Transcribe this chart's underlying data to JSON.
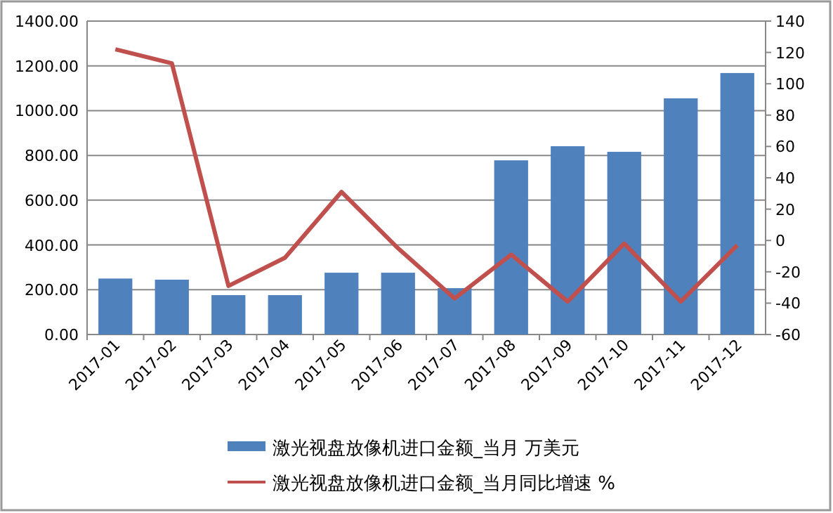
{
  "chart_data": {
    "type": "bar",
    "categories": [
      "2017-01",
      "2017-02",
      "2017-03",
      "2017-04",
      "2017-05",
      "2017-06",
      "2017-07",
      "2017-08",
      "2017-09",
      "2017-10",
      "2017-11",
      "2017-12"
    ],
    "series": [
      {
        "name": "激光视盘放像机进口金额_当月 万美元",
        "color": "#4f81bd",
        "values": [
          250,
          245,
          176,
          176,
          276,
          276,
          207,
          778,
          841,
          816,
          1055,
          1168
        ]
      },
      {
        "name": "激光视盘放像机进口金额_当月同比增速 %",
        "type": "line",
        "axis": "y2",
        "color": "#c0504d",
        "values": [
          122,
          113,
          -29,
          -11,
          31,
          -5,
          -37,
          -9,
          -39,
          -2,
          -39,
          -3
        ]
      }
    ],
    "ylim": [
      0,
      1400
    ],
    "yticks": [
      {
        "value": 0,
        "label": "0.00"
      },
      {
        "value": 200,
        "label": "200.00"
      },
      {
        "value": 400,
        "label": "400.00"
      },
      {
        "value": 600,
        "label": "600.00"
      },
      {
        "value": 800,
        "label": "800.00"
      },
      {
        "value": 1000,
        "label": "1000.00"
      },
      {
        "value": 1200,
        "label": "1200.00"
      },
      {
        "value": 1400,
        "label": "1400.00"
      }
    ],
    "y2lim": [
      -60,
      140
    ],
    "y2ticks": [
      -60,
      -40,
      -20,
      0,
      20,
      40,
      60,
      80,
      100,
      120,
      140
    ],
    "grid": "y",
    "legend": "bottom"
  }
}
